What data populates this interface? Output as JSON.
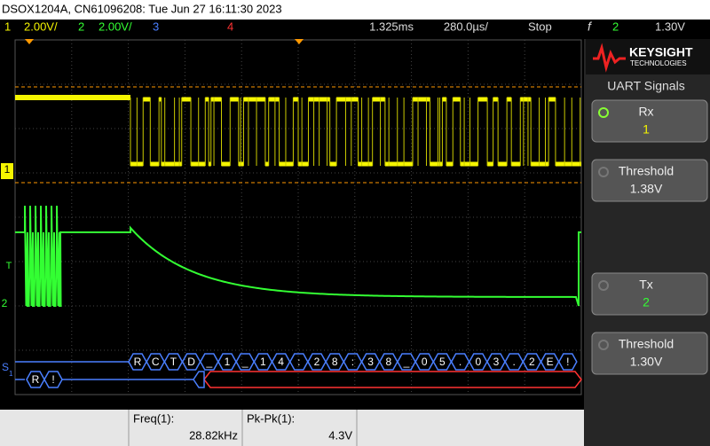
{
  "header": {
    "title": "DSOX1204A, CN61096208: Tue Jun 27 16:11:30 2023"
  },
  "channel_bar": {
    "ch1": "1",
    "ch1_scale": "2.00V/",
    "ch2": "2",
    "ch2_scale": "2.00V/",
    "ch3": "3",
    "ch4": "4",
    "delay": "1.325ms",
    "timebase": "280.0µs/",
    "status": "Stop",
    "trigger_source": "2",
    "trigger_level": "1.30V"
  },
  "logo": {
    "name": "KEYSIGHT",
    "sub": "TECHNOLOGIES"
  },
  "menu": {
    "title": "UART Signals",
    "softkeys": [
      {
        "label": "Rx",
        "value": "1"
      },
      {
        "label": "Threshold",
        "value": "1.38V"
      },
      {
        "label": "Tx",
        "value": "2"
      },
      {
        "label": "Threshold",
        "value": "1.30V"
      }
    ]
  },
  "markers": {
    "ch1": "1",
    "trigger": "T",
    "ch2": "2",
    "bus": "S",
    "bus_index": "1"
  },
  "decode": {
    "tx_bytes": [
      "R",
      "C",
      "T",
      "D",
      "_",
      "1",
      "_",
      "1",
      "4",
      ":",
      "2",
      "8",
      ":",
      "3",
      "8",
      "_",
      "0",
      "5",
      ".",
      "0",
      "3",
      ".",
      "2",
      "E",
      "!"
    ],
    "rx_bytes": [
      "R",
      "!"
    ]
  },
  "measurements": [
    {
      "label": "Freq(1):",
      "value": "28.82kHz"
    },
    {
      "label": "Pk-Pk(1):",
      "value": "4.3V"
    }
  ]
}
